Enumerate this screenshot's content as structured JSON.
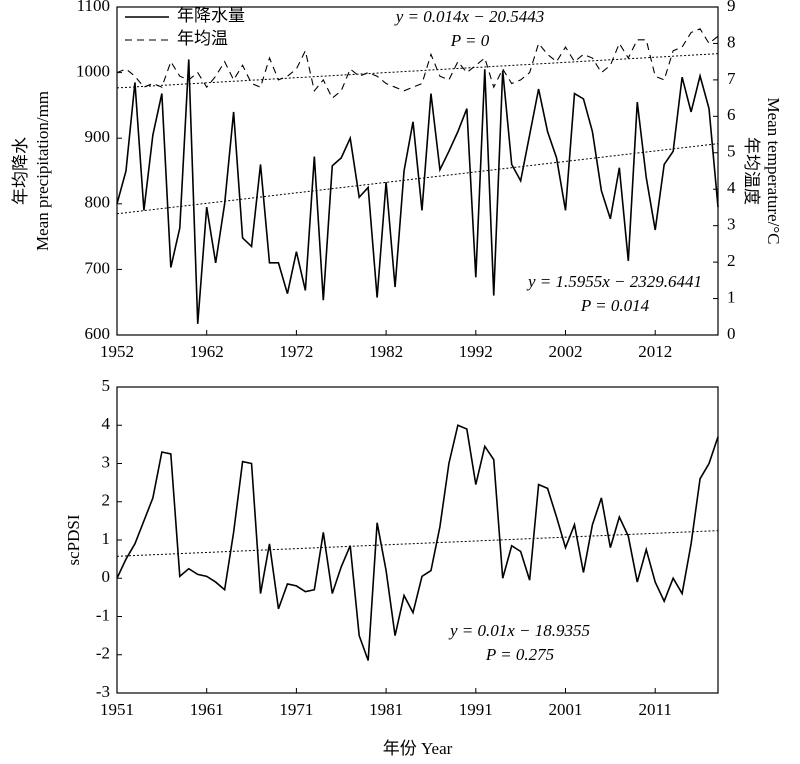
{
  "chart_data": [
    {
      "type": "line",
      "ylabel": [
        "年均降水",
        "Mean precipitation/mm"
      ],
      "y2label": [
        "年均温度",
        "Mean temperature/°C"
      ],
      "legend": "upper left",
      "xlim": [
        1952,
        2019
      ],
      "xticks": [
        1952,
        1962,
        1972,
        1982,
        1992,
        2002,
        2012
      ],
      "ylim": [
        600,
        1100
      ],
      "yticks": [
        600,
        700,
        800,
        900,
        1000,
        1100
      ],
      "y2lim": [
        0,
        9
      ],
      "y2ticks": [
        0,
        1,
        2,
        3,
        4,
        5,
        6,
        7,
        8,
        9
      ],
      "x": [
        1952,
        1953,
        1954,
        1955,
        1956,
        1957,
        1958,
        1959,
        1960,
        1961,
        1962,
        1963,
        1964,
        1965,
        1966,
        1967,
        1968,
        1969,
        1970,
        1971,
        1972,
        1973,
        1974,
        1975,
        1976,
        1977,
        1978,
        1979,
        1980,
        1981,
        1982,
        1983,
        1984,
        1985,
        1986,
        1987,
        1988,
        1989,
        1990,
        1991,
        1992,
        1993,
        1994,
        1995,
        1996,
        1997,
        1998,
        1999,
        2000,
        2001,
        2002,
        2003,
        2004,
        2005,
        2006,
        2007,
        2008,
        2009,
        2010,
        2011,
        2012,
        2013,
        2014,
        2015,
        2016,
        2017,
        2018,
        2019
      ],
      "series": [
        {
          "name": "年降水量",
          "color": "#000000",
          "style": "solid",
          "axis": "y",
          "values": [
            800,
            850,
            985,
            790,
            905,
            968,
            703,
            763,
            1020,
            617,
            795,
            710,
            800,
            940,
            748,
            735,
            860,
            710,
            710,
            663,
            727,
            668,
            872,
            653,
            858,
            870,
            900,
            810,
            825,
            657,
            833,
            673,
            850,
            925,
            790,
            968,
            852,
            880,
            910,
            945,
            688,
            1005,
            660,
            1003,
            860,
            835,
            905,
            975,
            910,
            870,
            790,
            968,
            960,
            910,
            820,
            777,
            855,
            713,
            955,
            840,
            760,
            860,
            880,
            993,
            940,
            995,
            945,
            795
          ]
        },
        {
          "name": "年均温",
          "color": "#000000",
          "style": "dashed",
          "axis": "y2",
          "values": [
            7.2,
            7.3,
            7.1,
            6.8,
            6.9,
            6.8,
            7.5,
            7.1,
            7.0,
            7.2,
            6.8,
            7.1,
            7.5,
            7.0,
            7.4,
            6.9,
            6.8,
            7.6,
            7.0,
            7.1,
            7.3,
            7.8,
            6.7,
            7.0,
            6.5,
            6.7,
            7.3,
            7.1,
            7.2,
            7.1,
            6.9,
            6.8,
            6.7,
            6.8,
            6.9,
            7.7,
            7.1,
            7.0,
            7.5,
            7.2,
            7.4,
            7.6,
            6.8,
            7.3,
            6.9,
            7.0,
            7.2,
            8.0,
            7.7,
            7.5,
            7.9,
            7.5,
            7.7,
            7.6,
            7.2,
            7.4,
            8.0,
            7.6,
            8.1,
            8.1,
            7.1,
            7.0,
            7.8,
            7.9,
            8.3,
            8.4,
            8.0,
            8.2
          ]
        }
      ],
      "trendlines": [
        {
          "axis": "y2",
          "x": [
            1952,
            2019
          ],
          "values": [
            6.78,
            7.72
          ]
        },
        {
          "axis": "y",
          "x": [
            1952,
            2019
          ],
          "values": [
            784.8,
            891.7
          ]
        }
      ],
      "annotations": [
        "y = 0.014x − 20.5443",
        "P = 0",
        "y = 1.5955x − 2329.6441",
        "P = 0.014"
      ]
    },
    {
      "type": "line",
      "ylabel": [
        "scPDSI"
      ],
      "xlabel": "年份 Year",
      "xlim": [
        1951,
        2018
      ],
      "xticks": [
        1951,
        1961,
        1971,
        1981,
        1991,
        2001,
        2011
      ],
      "ylim": [
        -3,
        5
      ],
      "yticks": [
        -3,
        -2,
        -1,
        0,
        1,
        2,
        3,
        4,
        5
      ],
      "x": [
        1951,
        1952,
        1953,
        1954,
        1955,
        1956,
        1957,
        1958,
        1959,
        1960,
        1961,
        1962,
        1963,
        1964,
        1965,
        1966,
        1967,
        1968,
        1969,
        1970,
        1971,
        1972,
        1973,
        1974,
        1975,
        1976,
        1977,
        1978,
        1979,
        1980,
        1981,
        1982,
        1983,
        1984,
        1985,
        1986,
        1987,
        1988,
        1989,
        1990,
        1991,
        1992,
        1993,
        1994,
        1995,
        1996,
        1997,
        1998,
        1999,
        2000,
        2001,
        2002,
        2003,
        2004,
        2005,
        2006,
        2007,
        2008,
        2009,
        2010,
        2011,
        2012,
        2013,
        2014,
        2015,
        2016,
        2017,
        2018
      ],
      "series": [
        {
          "color": "#000000",
          "style": "solid",
          "axis": "y",
          "values": [
            0,
            0.5,
            0.9,
            1.5,
            2.1,
            3.3,
            3.25,
            0.05,
            0.25,
            0.1,
            0.05,
            -0.1,
            -0.3,
            1.2,
            3.05,
            3.0,
            -0.4,
            0.9,
            -0.8,
            -0.15,
            -0.2,
            -0.35,
            -0.3,
            1.2,
            -0.4,
            0.3,
            0.85,
            -1.5,
            -2.15,
            1.45,
            0.2,
            -1.5,
            -0.45,
            -0.9,
            0.05,
            0.2,
            1.35,
            3.0,
            4.0,
            3.9,
            2.45,
            3.45,
            3.1,
            0,
            0.85,
            0.7,
            -0.05,
            2.45,
            2.35,
            1.6,
            0.8,
            1.4,
            0.15,
            1.4,
            2.1,
            0.8,
            1.6,
            1.1,
            -0.1,
            0.75,
            -0.1,
            -0.6,
            0,
            -0.4,
            0.9,
            2.6,
            3.0,
            3.7
          ]
        }
      ],
      "trendlines": [
        {
          "axis": "y",
          "x": [
            1951,
            2018
          ],
          "values": [
            0.5745,
            1.2445
          ]
        }
      ],
      "annotations": [
        "y = 0.01x − 18.9355",
        "P = 0.275"
      ]
    }
  ]
}
